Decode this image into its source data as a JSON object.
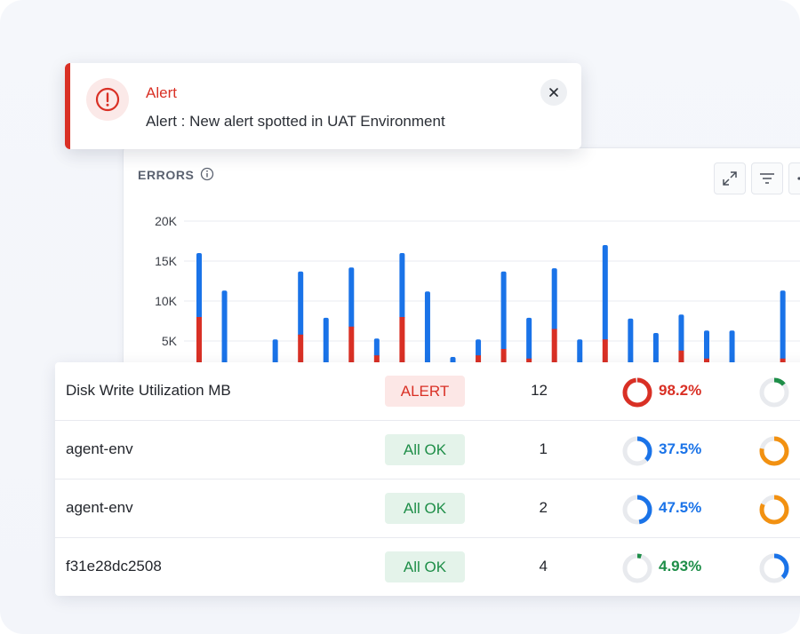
{
  "errors_panel": {
    "title": "ERRORS",
    "y_ticks": [
      "20K",
      "15K",
      "10K",
      "5K"
    ]
  },
  "alert": {
    "title": "Alert",
    "message": "Alert : New alert spotted in UAT Environment"
  },
  "table": {
    "rows": [
      {
        "name": "Disk Write Utilization MB",
        "status": "ALERT",
        "count": "12",
        "percent": "98.2%",
        "percent_value": 98.2,
        "percent_color": "#d93025",
        "second_fraction": 0.14,
        "second_color": "#1e8e48"
      },
      {
        "name": "agent-env",
        "status": "All OK",
        "count": "1",
        "percent": "37.5%",
        "percent_value": 37.5,
        "percent_color": "#1a73e8",
        "second_fraction": 0.78,
        "second_color": "#f29111"
      },
      {
        "name": "agent-env",
        "status": "All OK",
        "count": "2",
        "percent": "47.5%",
        "percent_value": 47.5,
        "percent_color": "#1a73e8",
        "second_fraction": 0.82,
        "second_color": "#f29111"
      },
      {
        "name": "f31e28dc2508",
        "status": "All OK",
        "count": "4",
        "percent": "4.93%",
        "percent_value": 4.93,
        "percent_color": "#1e8e48",
        "second_fraction": 0.38,
        "second_color": "#1a73e8"
      }
    ]
  },
  "chart_data": {
    "type": "bar",
    "stacked": true,
    "title": "ERRORS",
    "ylim": [
      0,
      20000
    ],
    "y_ticks": [
      "20K",
      "15K",
      "10K",
      "5K"
    ],
    "grid": true,
    "colors": {
      "blue": "#1a73e8",
      "red": "#d93025"
    },
    "series": [
      {
        "color": "#d93025",
        "values": [
          8000,
          0,
          0,
          0,
          5800,
          0,
          6800,
          3200,
          8000,
          0,
          0,
          3200,
          4000,
          2800,
          6500,
          0,
          5200,
          0,
          0,
          3800,
          2800,
          0,
          0,
          2800,
          3500
        ]
      },
      {
        "color": "#1a73e8",
        "values": [
          8000,
          11300,
          0,
          5200,
          7900,
          7900,
          7400,
          2100,
          8000,
          11200,
          3000,
          2000,
          9700,
          5100,
          7600,
          5200,
          11800,
          7800,
          6000,
          4500,
          3500,
          6300,
          0,
          8500,
          1500
        ]
      }
    ]
  }
}
